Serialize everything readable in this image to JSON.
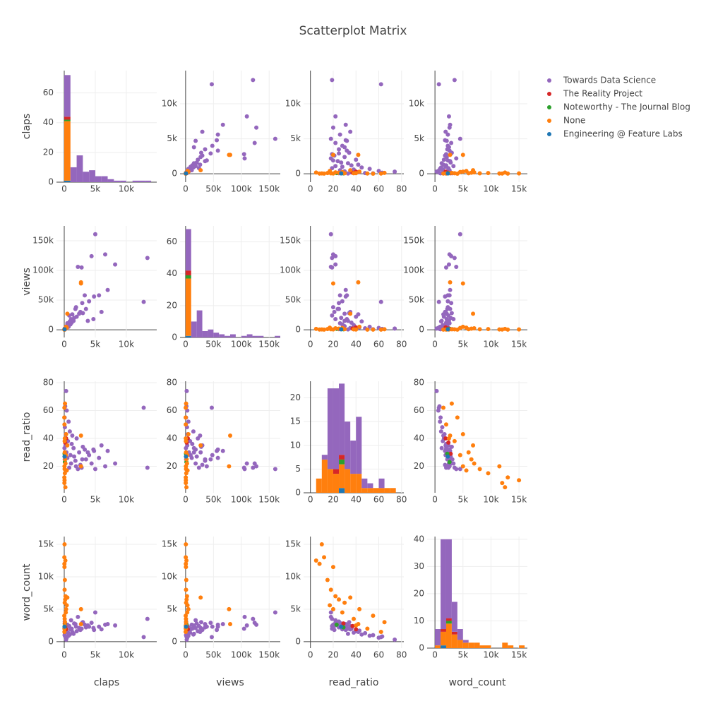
{
  "chart_data": {
    "type": "scatter_matrix",
    "title": "Scatterplot Matrix",
    "dimensions": [
      {
        "label": "claps",
        "xlim": [
          -1250,
          14900
        ],
        "ylim": [
          -1200,
          14750
        ],
        "ticks": [
          0,
          {
            "value": 5000,
            "label": "5k"
          },
          {
            "value": 10000,
            "label": "10k"
          }
        ]
      },
      {
        "label": "views",
        "xlim": [
          -10000,
          170000
        ],
        "ylim": [
          -13000,
          175000
        ],
        "ticks": [
          0,
          {
            "value": 50000,
            "label": "50k"
          },
          {
            "value": 100000,
            "label": "100k"
          },
          {
            "value": 150000,
            "label": "150k"
          }
        ]
      },
      {
        "label": "read_ratio",
        "xlim": [
          -6,
          82
        ],
        "ylim": [
          1,
          81
        ],
        "ticks": [
          0,
          20,
          40,
          60,
          80
        ]
      },
      {
        "label": "word_count",
        "xlim": [
          -1400,
          16500
        ],
        "ylim": [
          -1000,
          16200
        ],
        "ticks": [
          0,
          {
            "value": 5000,
            "label": "5k"
          },
          {
            "value": 10000,
            "label": "10k"
          },
          {
            "value": 15000,
            "label": "15k"
          }
        ]
      }
    ],
    "series": [
      {
        "name": "Towards Data Science",
        "color": "#9467bd",
        "values": [
          [
            13400,
            12800,
            8200,
            7000,
            6600,
            5600,
            5000,
            4800,
            4400,
            4000,
            3500,
            3300,
            3000,
            2800,
            2600,
            2400,
            2200,
            2000,
            1800,
            1600,
            1500,
            1300,
            1200,
            1100,
            1000,
            900,
            800,
            700,
            600,
            500,
            400,
            350,
            300,
            250,
            200,
            150,
            100,
            80,
            60,
            40,
            3800,
            2900,
            1900,
            6000,
            4700
          ],
          [
            121000,
            47000,
            110000,
            67000,
            127000,
            58000,
            161000,
            56000,
            124000,
            48000,
            35000,
            58000,
            28000,
            105000,
            30000,
            27000,
            106000,
            22000,
            35000,
            20000,
            15000,
            26000,
            12000,
            18000,
            9000,
            14000,
            24000,
            5000,
            8000,
            11000,
            3000,
            6000,
            2000,
            4000,
            3000,
            1500,
            2500,
            1000,
            800,
            600,
            15000,
            45000,
            38000,
            30000,
            18000
          ],
          [
            19,
            62,
            22,
            31,
            20,
            26,
            18,
            31,
            22,
            28,
            25,
            32,
            34,
            19,
            21,
            30,
            18,
            40,
            24,
            27,
            33,
            42,
            36,
            22,
            28,
            45,
            19,
            52,
            38,
            26,
            60,
            30,
            74,
            43,
            35,
            63,
            48,
            25,
            55,
            33,
            30,
            25,
            20,
            35,
            32
          ],
          [
            3500,
            700,
            2500,
            2700,
            2600,
            2300,
            4500,
            1800,
            2900,
            2300,
            2200,
            2600,
            3000,
            2000,
            1800,
            2100,
            3800,
            1600,
            2700,
            2800,
            1200,
            1500,
            2000,
            3300,
            1900,
            1100,
            2400,
            900,
            1400,
            2600,
            600,
            2200,
            300,
            1700,
            2400,
            800,
            1300,
            3100,
            1000,
            2000,
            2500,
            2900,
            2300,
            1900,
            2100
          ]
        ]
      },
      {
        "name": "The Reality Project",
        "color": "#d62728",
        "values": [
          [
            150,
            80,
            300
          ],
          [
            2000,
            1200,
            4000
          ],
          [
            37,
            29,
            40
          ],
          [
            2400,
            2800,
            1900
          ]
        ]
      },
      {
        "name": "Noteworthy - The Journal Blog",
        "color": "#2ca02c",
        "values": [
          [
            100,
            60
          ],
          [
            1500,
            800
          ],
          [
            23,
            29
          ],
          [
            2600,
            2200
          ]
        ]
      },
      {
        "name": "None",
        "color": "#ff7f0e",
        "values": [
          [
            2700,
            2700,
            50,
            30,
            20,
            40,
            100,
            60,
            200,
            150,
            80,
            300,
            10,
            500,
            120,
            40,
            250,
            70,
            180,
            90,
            30,
            400
          ],
          [
            80000,
            78000,
            500,
            400,
            300,
            600,
            1200,
            800,
            2500,
            1800,
            1000,
            5000,
            200,
            27000,
            900,
            300,
            3000,
            700,
            1500,
            400,
            200,
            3500
          ],
          [
            42,
            20,
            10,
            8,
            12,
            20,
            15,
            18,
            22,
            25,
            30,
            43,
            55,
            35,
            65,
            50,
            28,
            38,
            5,
            40,
            62,
            17
          ],
          [
            2700,
            5000,
            15000,
            12000,
            13000,
            11500,
            9500,
            8000,
            7000,
            6500,
            6000,
            5000,
            4000,
            6800,
            3000,
            2000,
            4500,
            3500,
            12500,
            2500,
            1500,
            5600
          ]
        ]
      },
      {
        "name": "Engineering @ Feature Labs",
        "color": "#1f77b4",
        "values": [
          [
            50
          ],
          [
            700
          ],
          [
            27
          ],
          [
            2300
          ]
        ]
      }
    ],
    "histograms": [
      {
        "bins": [
          0,
          1000,
          2000,
          3000,
          4000,
          5000,
          6000,
          7000,
          8000,
          9000,
          10000,
          11000,
          12000,
          13000,
          14000
        ],
        "ylim": [
          0,
          75
        ],
        "yticks": [
          0,
          20,
          40,
          60
        ],
        "counts": [
          [
            28,
            10,
            18,
            7,
            8,
            4,
            4,
            2,
            1,
            1,
            0,
            1,
            1,
            1
          ],
          [
            2,
            0,
            0,
            0,
            0,
            0,
            0,
            0,
            0,
            0,
            0,
            0,
            0,
            0
          ],
          [
            1,
            0,
            0,
            0,
            0,
            0,
            0,
            0,
            0,
            0,
            0,
            0,
            0,
            0
          ],
          [
            40,
            0,
            0,
            0,
            0,
            0,
            0,
            0,
            0,
            0,
            0,
            0,
            0,
            0
          ],
          [
            1,
            0,
            0,
            0,
            0,
            0,
            0,
            0,
            0,
            0,
            0,
            0,
            0,
            0
          ]
        ]
      },
      {
        "bins": [
          0,
          10000,
          20000,
          30000,
          40000,
          50000,
          60000,
          70000,
          80000,
          90000,
          100000,
          110000,
          120000,
          130000,
          140000,
          150000,
          160000,
          170000
        ],
        "ylim": [
          0,
          70
        ],
        "yticks": [
          0,
          20,
          40,
          60
        ],
        "counts": [
          [
            26,
            10,
            17,
            4,
            5,
            3,
            2,
            1,
            2,
            0,
            1,
            2,
            1,
            1,
            0,
            0,
            1
          ],
          [
            3,
            0,
            0,
            0,
            0,
            0,
            0,
            0,
            0,
            0,
            0,
            0,
            0,
            0,
            0,
            0,
            0
          ],
          [
            2,
            0,
            0,
            0,
            0,
            0,
            0,
            0,
            0,
            0,
            0,
            0,
            0,
            0,
            0,
            0,
            0
          ],
          [
            36,
            0,
            0,
            0,
            0,
            0,
            0,
            0,
            0,
            0,
            0,
            0,
            0,
            0,
            0,
            0,
            0
          ],
          [
            1,
            0,
            0,
            0,
            0,
            0,
            0,
            0,
            0,
            0,
            0,
            0,
            0,
            0,
            0,
            0,
            0
          ]
        ]
      },
      {
        "bins": [
          5,
          10,
          15,
          20,
          25,
          30,
          35,
          40,
          45,
          50,
          55,
          60,
          65,
          70,
          75
        ],
        "ylim": [
          0,
          23.5
        ],
        "yticks": [
          0,
          5,
          10,
          15,
          20
        ],
        "counts": [
          [
            0,
            1,
            17,
            17,
            15,
            10,
            7,
            12,
            2,
            1,
            0,
            2,
            0,
            0
          ],
          [
            0,
            0,
            0,
            1,
            1,
            0,
            0,
            0,
            0,
            0,
            0,
            0,
            0,
            0
          ],
          [
            0,
            0,
            0,
            0,
            1,
            0,
            0,
            0,
            0,
            0,
            0,
            0,
            0,
            0
          ],
          [
            3,
            7,
            5,
            4,
            5,
            5,
            4,
            4,
            1,
            1,
            1,
            1,
            1,
            1
          ],
          [
            0,
            0,
            0,
            0,
            1,
            0,
            0,
            0,
            0,
            0,
            0,
            0,
            0,
            0
          ]
        ]
      },
      {
        "bins": [
          0,
          1000,
          2000,
          3000,
          4000,
          5000,
          6000,
          7000,
          8000,
          9000,
          10000,
          11000,
          12000,
          13000,
          14000,
          15000,
          16000
        ],
        "ylim": [
          0,
          41
        ],
        "yticks": [
          0,
          10,
          20,
          30,
          40
        ],
        "counts": [
          [
            6,
            33,
            29,
            11,
            4,
            1,
            0,
            0,
            0,
            0,
            0,
            0,
            0,
            0,
            0,
            0
          ],
          [
            0,
            1,
            1,
            1,
            0,
            0,
            0,
            0,
            0,
            0,
            0,
            0,
            0,
            0,
            0,
            0
          ],
          [
            0,
            0,
            1,
            0,
            0,
            0,
            0,
            0,
            0,
            0,
            0,
            0,
            0,
            0,
            0,
            0
          ],
          [
            1,
            5,
            9,
            5,
            3,
            2,
            2,
            2,
            1,
            1,
            0,
            0,
            2,
            1,
            0,
            1
          ],
          [
            0,
            1,
            0,
            0,
            0,
            0,
            0,
            0,
            0,
            0,
            0,
            0,
            0,
            0,
            0,
            0
          ]
        ]
      }
    ]
  }
}
